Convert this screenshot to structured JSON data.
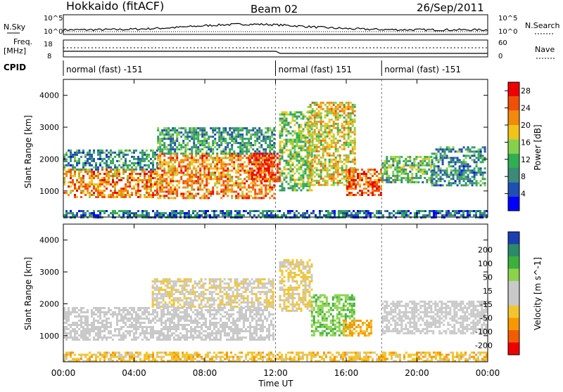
{
  "header": {
    "station": "Hokkaido (fitACF)",
    "beam": "Beam 02",
    "date": "26/Sep/2011"
  },
  "top_panels": {
    "nsky_label": "N.Sky",
    "nsky_ticks": [
      "10^5",
      "10^0"
    ],
    "nsearch_label": "N.Search",
    "freq_label_line1": "Freq.",
    "freq_label_line2": "[MHz]",
    "freq_ticks": [
      "18",
      "8"
    ],
    "nave_ticks": [
      "60",
      "0"
    ],
    "nave_label": "Nave",
    "cpid_label": "CPID",
    "cpid_segments": [
      {
        "label": "normal (fast) -151",
        "start_hour": 0,
        "end_hour": 12
      },
      {
        "label": "normal (fast) 151",
        "start_hour": 12,
        "end_hour": 18
      },
      {
        "label": "normal (fast) -151",
        "start_hour": 18,
        "end_hour": 24
      }
    ]
  },
  "colors": {
    "power_scale": [
      "#0000ff",
      "#1f4fb0",
      "#3c8a7a",
      "#2fae52",
      "#86d14b",
      "#f0c419",
      "#f28a0c",
      "#ef5008",
      "#ee0000"
    ],
    "velocity_scale": [
      "#ee0000",
      "#f25c00",
      "#f79800",
      "#f2c530",
      "#c9c9c9",
      "#c9c9c9",
      "#8ad34a",
      "#3cb03c",
      "#2b8a6a",
      "#1c3fb0"
    ],
    "background": "#ffffff"
  },
  "chart_data": [
    {
      "type": "heatmap",
      "name": "power",
      "x": {
        "label": "Time UT",
        "ticks": [
          "00:00",
          "04:00",
          "08:00",
          "12:00",
          "16:00",
          "20:00",
          "00:00"
        ],
        "range_hours": [
          0,
          24
        ]
      },
      "y": {
        "label": "Slant Range [km]",
        "ticks": [
          "1000",
          "2000",
          "3000",
          "4000"
        ],
        "range": [
          180,
          4500
        ]
      },
      "colorbar": {
        "label": "Power [dB]",
        "ticks": [
          "4",
          "8",
          "12",
          "16",
          "20",
          "24",
          "28"
        ],
        "range": [
          0,
          30
        ]
      },
      "echo_regions": [
        {
          "t0": 0,
          "t1": 5.3,
          "r0": 800,
          "r1": 1700,
          "power": 22
        },
        {
          "t0": 0,
          "t1": 5.3,
          "r0": 1700,
          "r1": 2300,
          "power": 9
        },
        {
          "t0": 5.3,
          "t1": 11.9,
          "r0": 800,
          "r1": 2200,
          "power": 22
        },
        {
          "t0": 5.3,
          "t1": 11.9,
          "r0": 2200,
          "r1": 3000,
          "power": 10
        },
        {
          "t0": 10.5,
          "t1": 12.2,
          "r0": 1300,
          "r1": 2200,
          "power": 27
        },
        {
          "t0": 12.2,
          "t1": 14.0,
          "r0": 1000,
          "r1": 3500,
          "power": 14
        },
        {
          "t0": 13.8,
          "t1": 16.5,
          "r0": 1200,
          "r1": 3800,
          "power": 18
        },
        {
          "t0": 16.0,
          "t1": 18.0,
          "r0": 900,
          "r1": 1700,
          "power": 25
        },
        {
          "t0": 18.0,
          "t1": 20.8,
          "r0": 1300,
          "r1": 2100,
          "power": 12
        },
        {
          "t0": 20.8,
          "t1": 23.9,
          "r0": 1200,
          "r1": 2400,
          "power": 9
        },
        {
          "t0": 0,
          "t1": 24,
          "r0": 200,
          "r1": 400,
          "power": 7
        }
      ]
    },
    {
      "type": "heatmap",
      "name": "velocity",
      "x": {
        "label": "Time UT",
        "ticks": [
          "00:00",
          "04:00",
          "08:00",
          "12:00",
          "16:00",
          "20:00",
          "00:00"
        ],
        "range_hours": [
          0,
          24
        ]
      },
      "y": {
        "label": "Slant Range [km]",
        "ticks": [
          "1000",
          "2000",
          "3000",
          "4000"
        ],
        "range": [
          180,
          4500
        ]
      },
      "colorbar": {
        "label": "Velocity [m s^-1]",
        "ticks": [
          "200",
          "100",
          "50",
          "15",
          "-15",
          "-50",
          "-100",
          "-200"
        ],
        "range": [
          -250,
          250
        ]
      },
      "echo_regions": [
        {
          "t0": 0,
          "t1": 11.9,
          "r0": 900,
          "r1": 1900,
          "velocity": 0
        },
        {
          "t0": 5.0,
          "t1": 11.9,
          "r0": 1900,
          "r1": 2800,
          "velocity": -40
        },
        {
          "t0": 12.2,
          "t1": 14.0,
          "r0": 1800,
          "r1": 3400,
          "velocity": -60
        },
        {
          "t0": 14.0,
          "t1": 16.5,
          "r0": 1000,
          "r1": 2300,
          "velocity": 90
        },
        {
          "t0": 15.8,
          "t1": 17.4,
          "r0": 1000,
          "r1": 1500,
          "velocity": -110
        },
        {
          "t0": 18.0,
          "t1": 23.9,
          "r0": 1100,
          "r1": 2100,
          "velocity": 0
        },
        {
          "t0": 0,
          "t1": 24,
          "r0": 200,
          "r1": 500,
          "velocity": -80
        }
      ]
    }
  ]
}
